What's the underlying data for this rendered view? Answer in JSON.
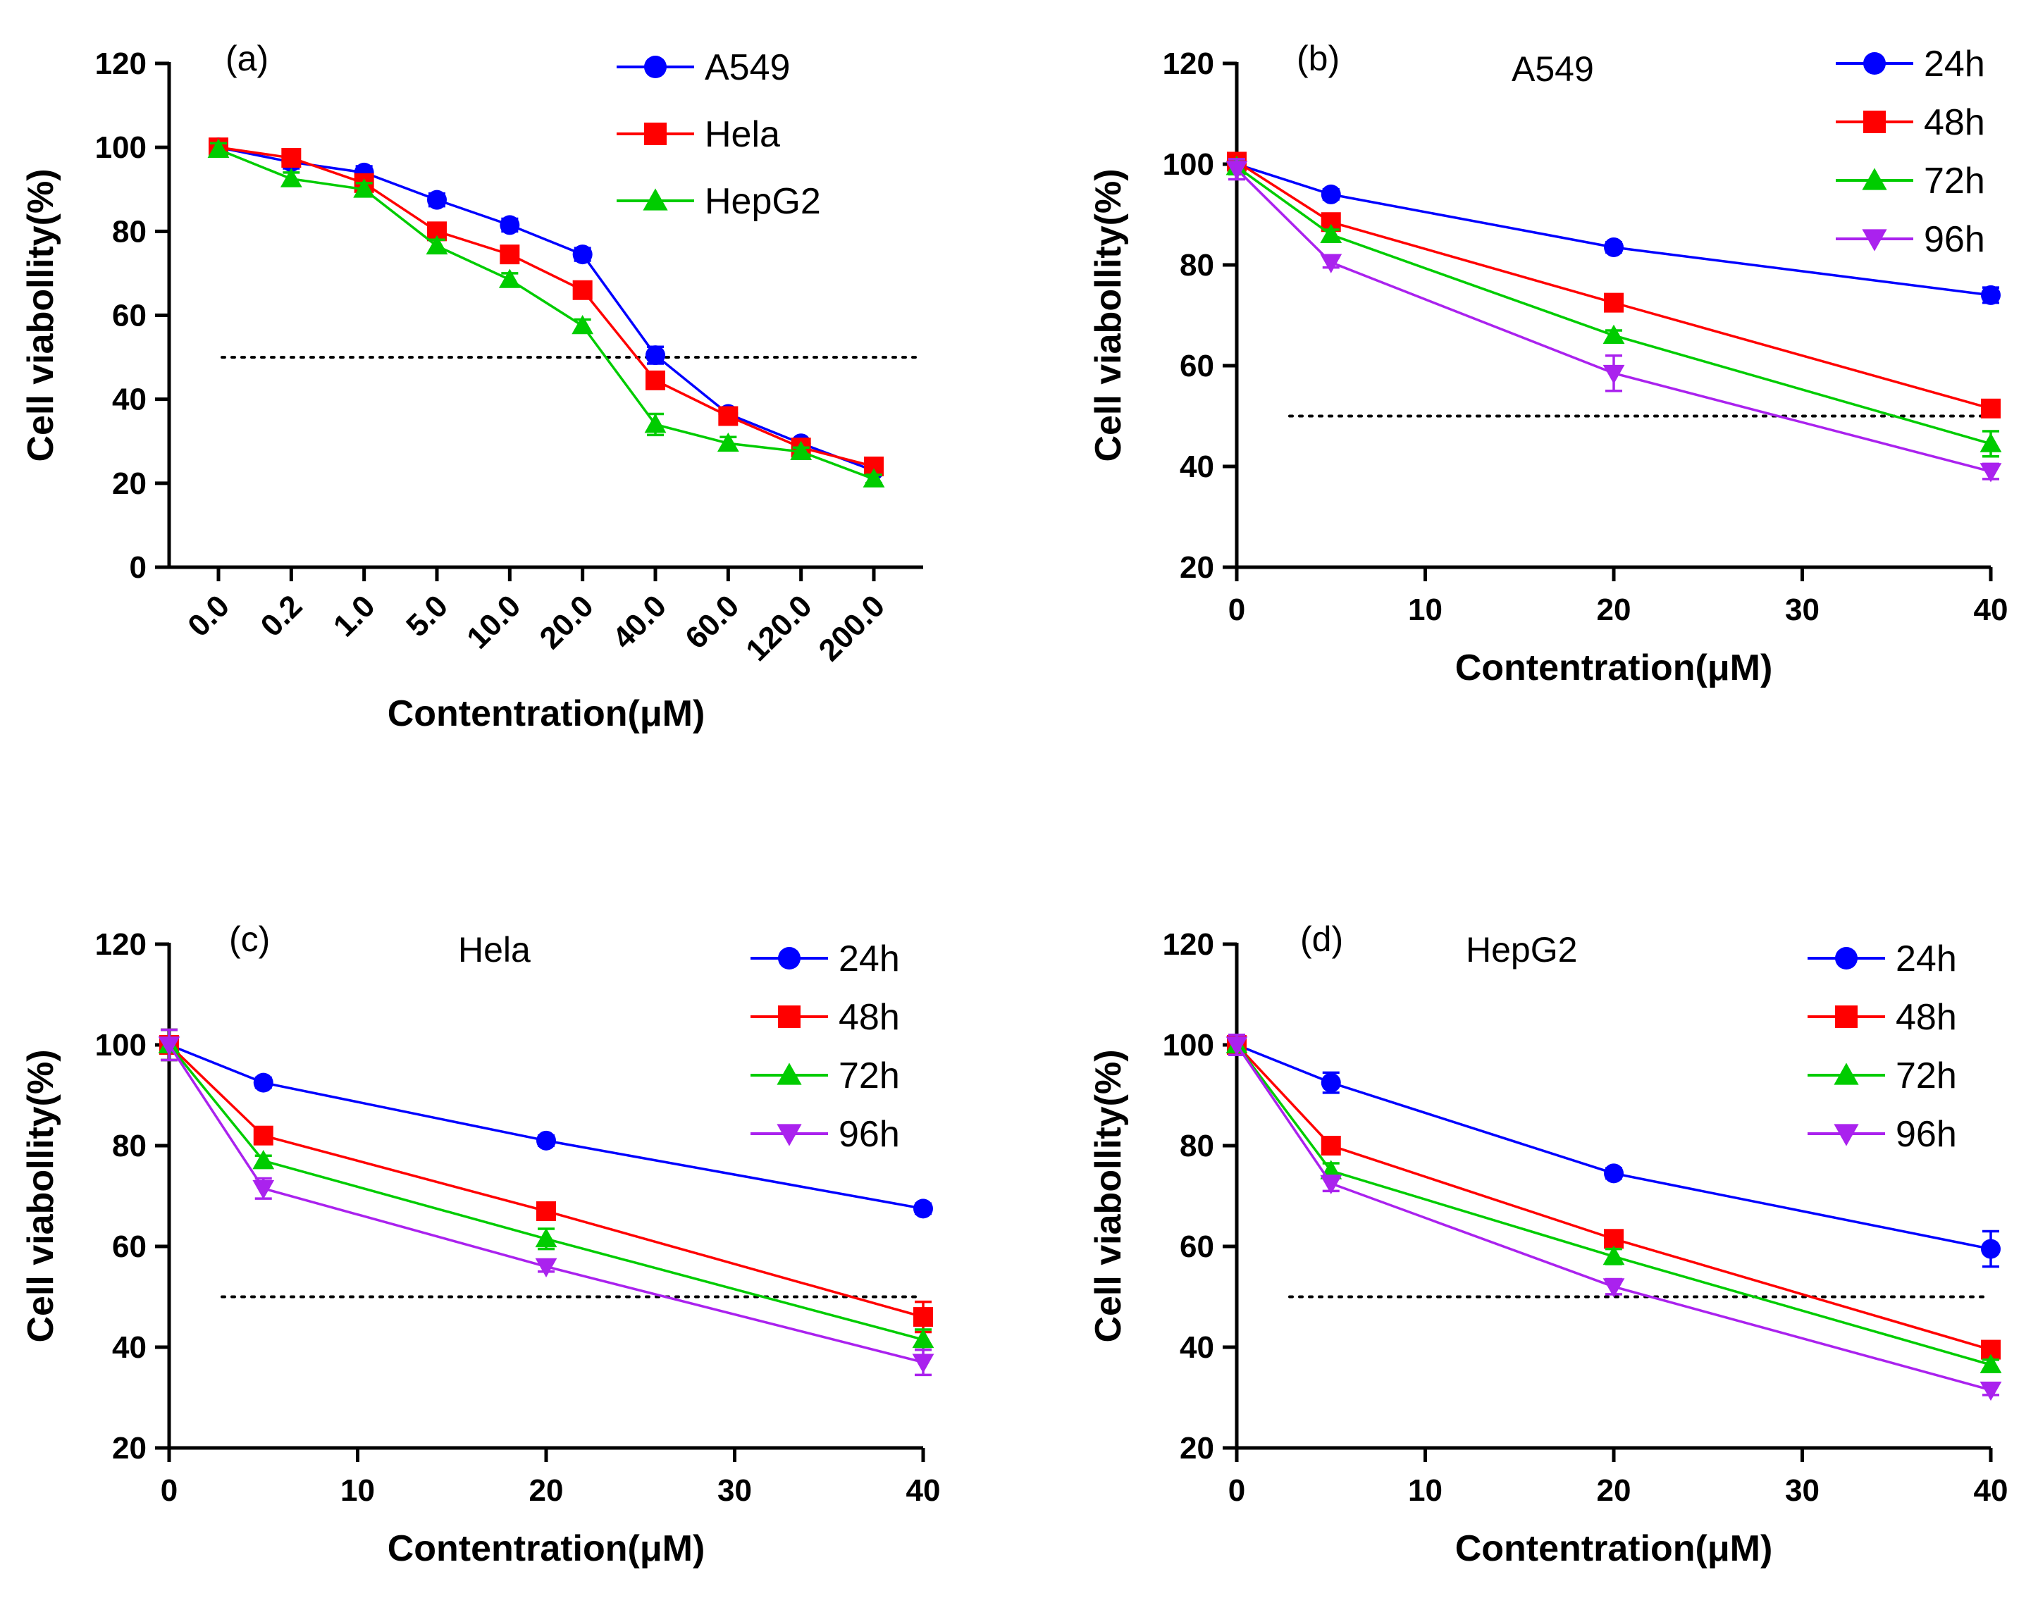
{
  "figure": {
    "background": "#ffffff"
  },
  "chart_data": [
    {
      "panel_tag": "(a)",
      "title": "",
      "type": "line",
      "x_scale": "categorical",
      "categories": [
        "0.0",
        "0.2",
        "1.0",
        "5.0",
        "10.0",
        "20.0",
        "40.0",
        "60.0",
        "120.0",
        "200.0"
      ],
      "xlabel": "Contentration(μM)",
      "ylabel": "Cell viabollity(%)",
      "ylim": [
        0,
        120
      ],
      "yticks": [
        0,
        20,
        40,
        60,
        80,
        100,
        120
      ],
      "reference_line": 50,
      "legend_position": "top-right",
      "series": [
        {
          "name": "A549",
          "color": "#0000ff",
          "marker": "circle",
          "values": [
            100,
            96.5,
            94,
            87.5,
            81.5,
            74.5,
            50.5,
            36.5,
            29.5,
            23
          ],
          "errors": [
            1.5,
            1.5,
            1.5,
            1.5,
            1.5,
            1.5,
            2,
            1.5,
            1,
            1
          ]
        },
        {
          "name": "Hela",
          "color": "#ff0000",
          "marker": "square",
          "values": [
            100,
            97.5,
            91.5,
            80,
            74.5,
            66,
            44.5,
            36,
            28.5,
            24
          ],
          "errors": [
            1.5,
            1.5,
            1.5,
            1.5,
            1.5,
            1.5,
            2,
            1.5,
            1,
            1
          ]
        },
        {
          "name": "HepG2",
          "color": "#00cc00",
          "marker": "triangle-up",
          "values": [
            99.5,
            92.5,
            90,
            76.5,
            68.5,
            57.5,
            34,
            29.5,
            27.5,
            21
          ],
          "errors": [
            1.5,
            1.5,
            1.5,
            1.5,
            1.5,
            1.5,
            2.5,
            1.5,
            1,
            1
          ]
        }
      ]
    },
    {
      "panel_tag": "(b)",
      "title": "A549",
      "type": "line",
      "x_scale": "linear",
      "x": [
        0,
        5,
        20,
        40
      ],
      "xlim": [
        0,
        40
      ],
      "xticks": [
        0,
        10,
        20,
        30,
        40
      ],
      "xlabel": "Contentration(μM)",
      "ylabel": "Cell viabollity(%)",
      "ylim": [
        20,
        120
      ],
      "yticks": [
        20,
        40,
        60,
        80,
        100,
        120
      ],
      "reference_line": 50,
      "legend_position": "top-right",
      "series": [
        {
          "name": "24h",
          "color": "#0000ff",
          "marker": "circle",
          "values": [
            100,
            94,
            83.5,
            74
          ],
          "errors": [
            1.5,
            1,
            1,
            1.5
          ]
        },
        {
          "name": "48h",
          "color": "#ff0000",
          "marker": "square",
          "values": [
            100.5,
            88.5,
            72.5,
            51.5
          ],
          "errors": [
            1.5,
            1,
            1,
            1
          ]
        },
        {
          "name": "72h",
          "color": "#00cc00",
          "marker": "triangle-up",
          "values": [
            99.5,
            86,
            66,
            44.5
          ],
          "errors": [
            1.5,
            1,
            1,
            2.5
          ]
        },
        {
          "name": "96h",
          "color": "#aa22ee",
          "marker": "triangle-down",
          "values": [
            99,
            80.5,
            58.5,
            39
          ],
          "errors": [
            2,
            1,
            3.5,
            1.5
          ]
        }
      ]
    },
    {
      "panel_tag": "(c)",
      "title": "Hela",
      "type": "line",
      "x_scale": "linear",
      "x": [
        0,
        5,
        20,
        40
      ],
      "xlim": [
        0,
        40
      ],
      "xticks": [
        0,
        10,
        20,
        30,
        40
      ],
      "xlabel": "Contentration(μM)",
      "ylabel": "Cell viabollity(%)",
      "ylim": [
        20,
        120
      ],
      "yticks": [
        20,
        40,
        60,
        80,
        100,
        120
      ],
      "reference_line": 50,
      "legend_position": "top-right",
      "series": [
        {
          "name": "24h",
          "color": "#0000ff",
          "marker": "circle",
          "values": [
            100,
            92.5,
            81,
            67.5
          ],
          "errors": [
            3,
            1,
            1,
            1
          ]
        },
        {
          "name": "48h",
          "color": "#ff0000",
          "marker": "square",
          "values": [
            100,
            82,
            67,
            46
          ],
          "errors": [
            3,
            1,
            1,
            3
          ]
        },
        {
          "name": "72h",
          "color": "#00cc00",
          "marker": "triangle-up",
          "values": [
            100,
            77,
            61.5,
            41.5
          ],
          "errors": [
            3,
            1,
            2,
            2
          ]
        },
        {
          "name": "96h",
          "color": "#aa22ee",
          "marker": "triangle-down",
          "values": [
            100,
            71.5,
            56,
            37
          ],
          "errors": [
            3,
            2,
            1,
            2.5
          ]
        }
      ]
    },
    {
      "panel_tag": "(d)",
      "title": "HepG2",
      "type": "line",
      "x_scale": "linear",
      "x": [
        0,
        5,
        20,
        40
      ],
      "xlim": [
        0,
        40
      ],
      "xticks": [
        0,
        10,
        20,
        30,
        40
      ],
      "xlabel": "Contentration(μM)",
      "ylabel": "Cell viabollity(%)",
      "ylim": [
        20,
        120
      ],
      "yticks": [
        20,
        40,
        60,
        80,
        100,
        120
      ],
      "reference_line": 50,
      "legend_position": "top-right",
      "series": [
        {
          "name": "24h",
          "color": "#0000ff",
          "marker": "circle",
          "values": [
            100,
            92.5,
            74.5,
            59.5
          ],
          "errors": [
            2,
            2,
            1,
            3.5
          ]
        },
        {
          "name": "48h",
          "color": "#ff0000",
          "marker": "square",
          "values": [
            100,
            80,
            61.5,
            39.5
          ],
          "errors": [
            2,
            1,
            1,
            1
          ]
        },
        {
          "name": "72h",
          "color": "#00cc00",
          "marker": "triangle-up",
          "values": [
            100,
            75,
            58,
            36.5
          ],
          "errors": [
            2,
            1.5,
            1.5,
            1
          ]
        },
        {
          "name": "96h",
          "color": "#aa22ee",
          "marker": "triangle-down",
          "values": [
            100,
            72.5,
            52,
            31.5
          ],
          "errors": [
            2,
            1.5,
            1.5,
            1
          ]
        }
      ]
    }
  ]
}
